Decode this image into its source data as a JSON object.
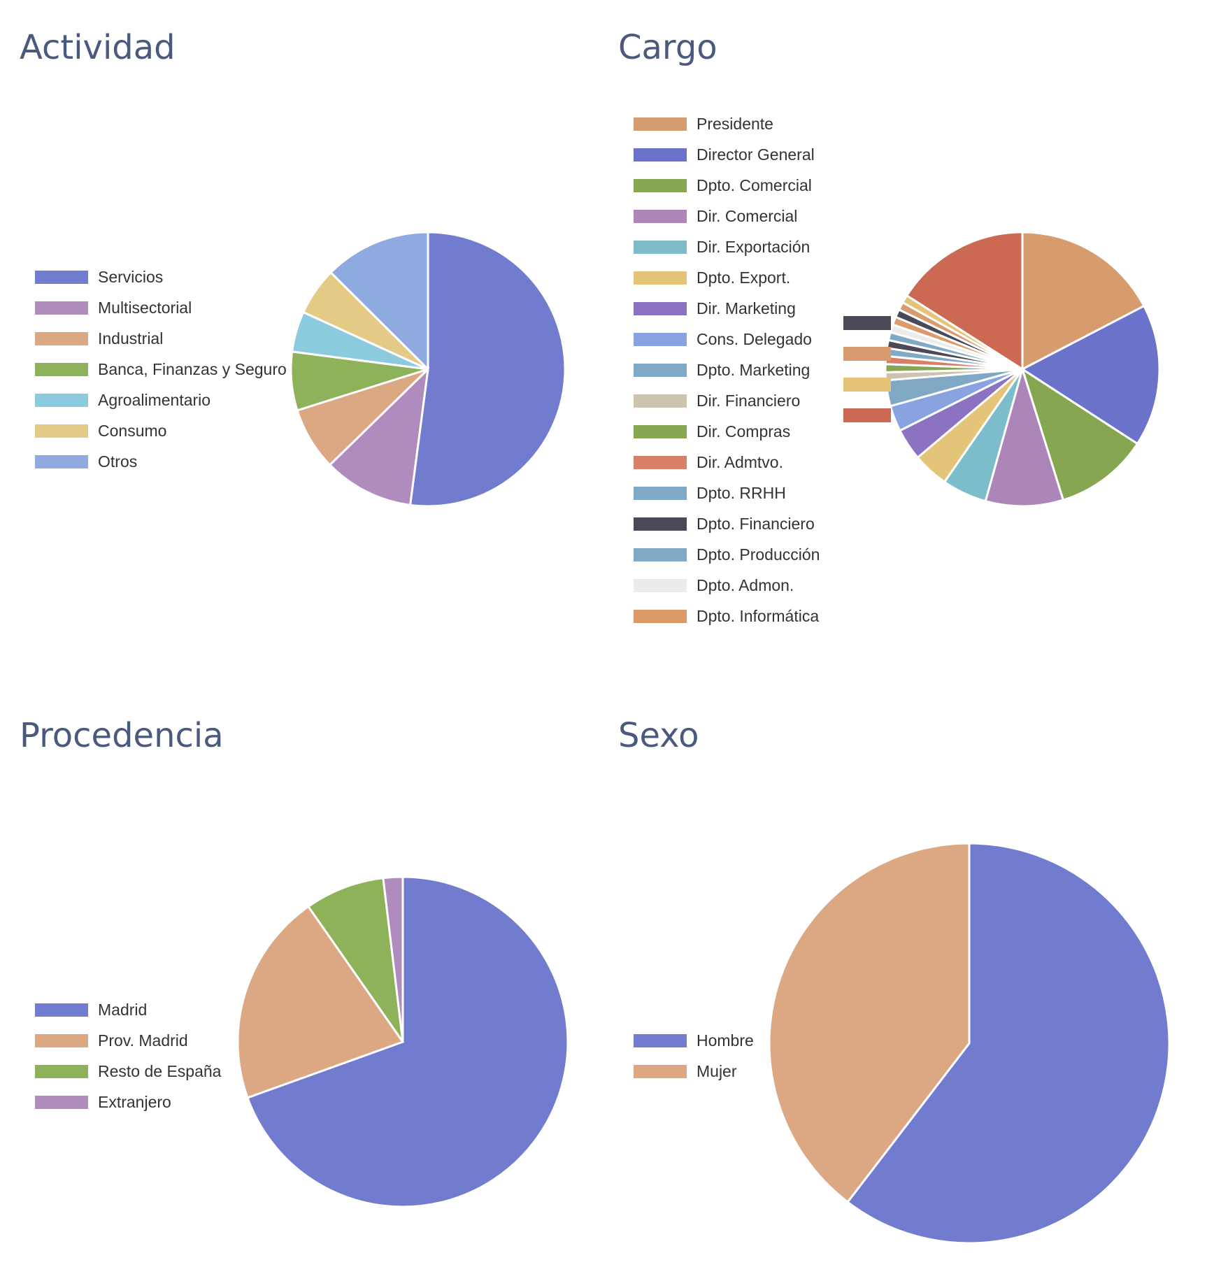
{
  "charts": [
    {
      "id": "actividad",
      "chart_data": {
        "type": "pie",
        "title": "Actividad",
        "series": [
          {
            "name": "Servicios",
            "value": 49.0,
            "color": "#717cce"
          },
          {
            "name": "Multisectorial",
            "value": 10.0,
            "color": "#b08cbe"
          },
          {
            "name": "Industrial",
            "value": 7.0,
            "color": "#dba883"
          },
          {
            "name": "Banca, Finanzas y Seguro",
            "value": 6.5,
            "color": "#8db259"
          },
          {
            "name": "Agroalimentario",
            "value": 4.5,
            "color": "#8ccbde"
          },
          {
            "name": "Consumo",
            "value": 5.3,
            "color": "#e4cb85"
          },
          {
            "name": "Otros",
            "value": 11.8,
            "color": "#8eaae0"
          }
        ],
        "legend_position": "left"
      }
    },
    {
      "id": "cargo",
      "chart_data": {
        "type": "pie",
        "title": "Cargo",
        "series": [
          {
            "name": "Presidente",
            "value": 14.8,
            "color": "#d69c6e"
          },
          {
            "name": "Director General",
            "value": 14.3,
            "color": "#6a72ca"
          },
          {
            "name": "Dpto. Comercial",
            "value": 9.4,
            "color": "#86a652"
          },
          {
            "name": "Dir. Comercial",
            "value": 7.8,
            "color": "#ac86b9"
          },
          {
            "name": "Dir. Exportación",
            "value": 4.5,
            "color": "#7dbccb"
          },
          {
            "name": "Dpto. Export.",
            "value": 3.6,
            "color": "#e4c478"
          },
          {
            "name": "Dir. Marketing",
            "value": 3.2,
            "color": "#8b73c2"
          },
          {
            "name": "Cons. Delegado",
            "value": 2.6,
            "color": "#89a3e1"
          },
          {
            "name": "Dpto. Marketing",
            "value": 2.6,
            "color": "#7fa8c4"
          },
          {
            "name": "Dir. Financiero",
            "value": 0.8,
            "color": "#ccc4ae"
          },
          {
            "name": "Dir. Compras",
            "value": 0.8,
            "color": "#86a652"
          },
          {
            "name": "Dir. Admtvo.",
            "value": 0.8,
            "color": "#d97e69"
          },
          {
            "name": "Dpto. RRHH",
            "value": 0.8,
            "color": "#80a9c5"
          },
          {
            "name": "Dpto. Financiero",
            "value": 0.8,
            "color": "#4b4858"
          },
          {
            "name": "Dpto. Producción",
            "value": 0.8,
            "color": "#80a9c5"
          },
          {
            "name": "Dpto. Admon.",
            "value": 0.8,
            "color": "#ebebeb"
          },
          {
            "name": "Dpto. Informática",
            "value": 0.8,
            "color": "#dc9a6b"
          },
          {
            "name": "",
            "value": 0.8,
            "color": "#4b4858"
          },
          {
            "name": "",
            "value": 0.8,
            "color": "#d89b70"
          },
          {
            "name": "",
            "value": 0.8,
            "color": "#e5c47a"
          },
          {
            "name": "",
            "value": 13.6,
            "color": "#cb6953"
          }
        ],
        "legend_position": "left"
      }
    },
    {
      "id": "procedencia",
      "chart_data": {
        "type": "pie",
        "title": "Procedencia",
        "series": [
          {
            "name": "Madrid",
            "value": 69.5,
            "color": "#717cce"
          },
          {
            "name": "Prov. Madrid",
            "value": 20.8,
            "color": "#dba883"
          },
          {
            "name": "Resto de España",
            "value": 7.8,
            "color": "#8db259"
          },
          {
            "name": "Extranjero",
            "value": 1.9,
            "color": "#b08cbe"
          }
        ],
        "legend_position": "left"
      }
    },
    {
      "id": "sexo",
      "chart_data": {
        "type": "pie",
        "title": "Sexo",
        "series": [
          {
            "name": "Hombre",
            "value": 60.4,
            "color": "#717cce"
          },
          {
            "name": "Mujer",
            "value": 39.6,
            "color": "#dba883"
          }
        ],
        "legend_position": "left"
      }
    }
  ]
}
